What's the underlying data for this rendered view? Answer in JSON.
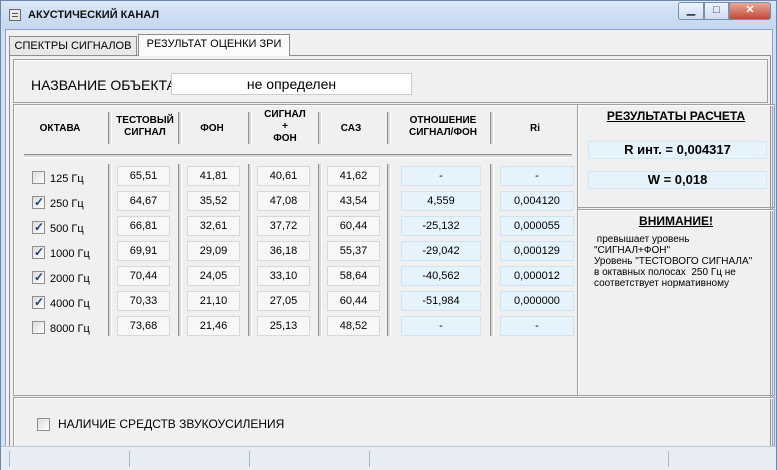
{
  "window": {
    "title": "АКУСТИЧЕСКИЙ КАНАЛ",
    "icon": "window-app-icon",
    "controls": {
      "minimize": "▁",
      "maximize": "□",
      "close": "✕"
    }
  },
  "tabs": [
    {
      "label": "СПЕКТРЫ СИГНАЛОВ",
      "active": false
    },
    {
      "label": "РЕЗУЛЬТАТ ОЦЕНКИ ЗРИ",
      "active": true
    }
  ],
  "object": {
    "label": "НАЗВАНИЕ ОБЪЕКТА",
    "value": "не определен"
  },
  "table": {
    "headers": {
      "octave": "ОКТАВА",
      "test": "ТЕСТОВЫЙ\nСИГНАЛ",
      "noise": "ФОН",
      "signal_noise": "СИГНАЛ\n+\nФОН",
      "saz": "САЗ",
      "ratio": "ОТНОШЕНИЕ\nСИГНАЛ/ФОН",
      "ri": "Ri"
    },
    "rows": [
      {
        "octave": "125 Гц",
        "checked": false,
        "test": "65,51",
        "noise": "41,81",
        "signal_noise": "40,61",
        "saz": "41,62",
        "ratio": "-",
        "ri": "-"
      },
      {
        "octave": "250 Гц",
        "checked": true,
        "test": "64,67",
        "noise": "35,52",
        "signal_noise": "47,08",
        "saz": "43,54",
        "ratio": "4,559",
        "ri": "0,004120"
      },
      {
        "octave": "500 Гц",
        "checked": true,
        "test": "66,81",
        "noise": "32,61",
        "signal_noise": "37,72",
        "saz": "60,44",
        "ratio": "-25,132",
        "ri": "0,000055"
      },
      {
        "octave": "1000 Гц",
        "checked": true,
        "test": "69,91",
        "noise": "29,09",
        "signal_noise": "36,18",
        "saz": "55,37",
        "ratio": "-29,042",
        "ri": "0,000129"
      },
      {
        "octave": "2000 Гц",
        "checked": true,
        "test": "70,44",
        "noise": "24,05",
        "signal_noise": "33,10",
        "saz": "58,64",
        "ratio": "-40,562",
        "ri": "0,000012"
      },
      {
        "octave": "4000 Гц",
        "checked": true,
        "test": "70,33",
        "noise": "21,10",
        "signal_noise": "27,05",
        "saz": "60,44",
        "ratio": "-51,984",
        "ri": "0,000000"
      },
      {
        "octave": "8000 Гц",
        "checked": false,
        "test": "73,68",
        "noise": "21,46",
        "signal_noise": "25,13",
        "saz": "48,52",
        "ratio": "-",
        "ri": "-"
      }
    ]
  },
  "results": {
    "title": "РЕЗУЛЬТАТЫ РАСЧЕТА",
    "r_int": "R инт. = 0,004317",
    "w": "W = 0,018"
  },
  "warning": {
    "title": "ВНИМАНИЕ!",
    "lines": [
      " превышает уровень",
      "\"СИГНАЛ+ФОН\"",
      "Уровень \"ТЕСТОВОГО СИГНАЛА\"",
      "в октавных полосах  250 Гц не",
      "соответствует нормативному"
    ]
  },
  "amplification": {
    "label": "НАЛИЧИЕ СРЕДСТВ ЗВУКОУСИЛЕНИЯ",
    "checked": false
  },
  "colors": {
    "titlebar": "#c3d6ee",
    "value_blue": "#e5f3fd",
    "close": "#c24a34"
  }
}
